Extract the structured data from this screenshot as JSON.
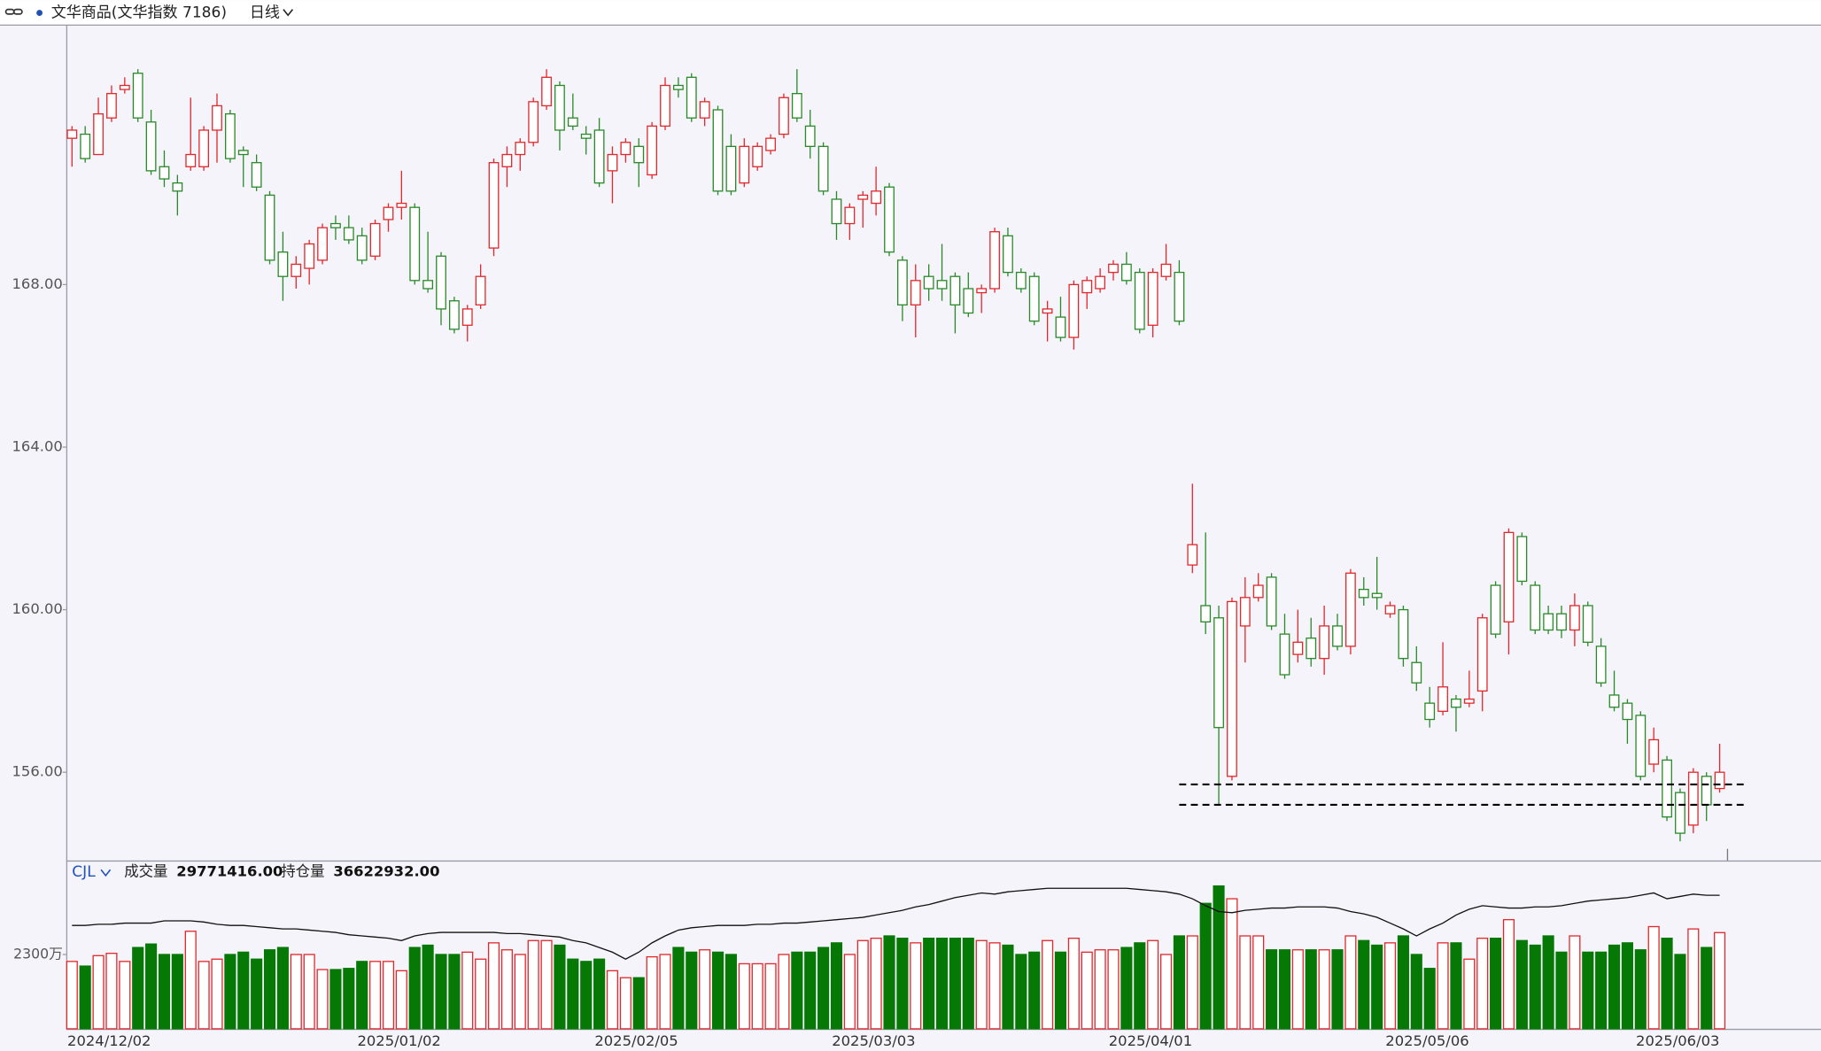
{
  "chart_data": {
    "type": "candlestick",
    "title": "文华商品(文华指数 7186)",
    "period": "日线",
    "categories": [
      "2024/12/02",
      null,
      null,
      null,
      null,
      null,
      null,
      null,
      null,
      null,
      null,
      null,
      null,
      null,
      null,
      null,
      null,
      null,
      null,
      null,
      null,
      null,
      "2025/01/02",
      null,
      null,
      null,
      null,
      null,
      null,
      null,
      null,
      null,
      null,
      null,
      null,
      null,
      null,
      null,
      null,
      null,
      "2025/02/05",
      null,
      null,
      null,
      null,
      null,
      null,
      null,
      null,
      null,
      null,
      null,
      null,
      null,
      null,
      null,
      null,
      null,
      "2025/03/03",
      null,
      null,
      null,
      null,
      null,
      null,
      null,
      null,
      null,
      null,
      null,
      null,
      null,
      null,
      null,
      null,
      null,
      null,
      null,
      null,
      "2025/04/01",
      null,
      null,
      null,
      null,
      null,
      null,
      null,
      null,
      null,
      null,
      null,
      null,
      null,
      null,
      null,
      null,
      null,
      null,
      null,
      null,
      "2025/05/06",
      null,
      null,
      null,
      null,
      null,
      null,
      null,
      null,
      null,
      null,
      null,
      null,
      null,
      null,
      null,
      null,
      null,
      null,
      "2025/06/03",
      null,
      null,
      null,
      null,
      null,
      null
    ],
    "open": [
      171.6,
      171.7,
      171.2,
      172.1,
      172.8,
      173.2,
      172.0,
      170.9,
      170.5,
      170.9,
      170.9,
      171.8,
      172.2,
      171.3,
      171.0,
      170.2,
      168.8,
      168.2,
      168.4,
      168.6,
      169.5,
      169.4,
      169.2,
      168.7,
      169.6,
      169.9,
      169.9,
      168.1,
      168.7,
      167.6,
      167.0,
      167.5,
      168.9,
      170.9,
      171.2,
      171.5,
      172.4,
      172.9,
      172.1,
      171.7,
      171.8,
      170.8,
      171.2,
      171.4,
      170.7,
      171.9,
      172.9,
      173.1,
      172.1,
      172.3,
      171.4,
      170.5,
      170.9,
      171.3,
      171.7,
      172.7,
      171.9,
      171.4,
      170.1,
      169.5,
      170.1,
      170.0,
      170.4,
      168.6,
      167.5,
      168.2,
      168.1,
      168.2,
      167.9,
      167.8,
      167.9,
      169.2,
      168.3,
      168.2,
      167.3,
      167.2,
      166.7,
      167.8,
      167.9,
      168.3,
      168.5,
      168.3,
      167.0,
      168.2,
      168.3,
      161.1,
      160.1,
      159.8,
      155.9,
      159.6,
      160.3,
      160.8,
      159.4,
      158.9,
      159.3,
      158.8,
      159.6,
      159.1,
      160.5,
      160.4,
      159.9,
      160.0,
      158.7,
      157.7,
      157.5,
      157.8,
      157.7,
      158.0,
      160.6,
      159.7,
      161.8,
      160.6,
      159.9,
      159.9,
      159.5,
      160.1,
      159.1,
      157.9,
      157.7,
      157.4,
      156.2,
      156.3,
      155.5,
      154.7,
      155.9,
      155.6
    ],
    "high": [
      171.9,
      171.9,
      172.6,
      172.9,
      173.1,
      173.3,
      172.3,
      171.3,
      170.7,
      172.6,
      171.9,
      172.7,
      172.3,
      171.4,
      171.2,
      170.3,
      169.3,
      168.7,
      169.1,
      169.5,
      169.7,
      169.7,
      169.4,
      169.6,
      170.0,
      170.8,
      170.0,
      169.3,
      168.8,
      167.7,
      167.5,
      168.5,
      171.1,
      171.4,
      171.6,
      172.6,
      173.3,
      173.0,
      172.7,
      171.9,
      172.1,
      171.4,
      171.6,
      171.6,
      172.0,
      173.1,
      173.1,
      173.2,
      172.6,
      172.4,
      171.7,
      171.6,
      171.5,
      171.7,
      172.7,
      173.3,
      172.3,
      171.5,
      170.3,
      170.0,
      170.3,
      170.9,
      170.5,
      168.7,
      168.5,
      168.5,
      169.0,
      168.3,
      168.3,
      168.0,
      169.4,
      169.4,
      168.4,
      168.3,
      167.6,
      167.7,
      168.1,
      168.2,
      168.4,
      168.6,
      168.8,
      168.4,
      168.4,
      169.0,
      168.6,
      163.1,
      161.9,
      160.1,
      160.3,
      160.8,
      160.9,
      160.9,
      159.9,
      160.0,
      159.8,
      160.1,
      159.9,
      161.0,
      160.8,
      161.3,
      160.2,
      160.1,
      159.1,
      158.1,
      159.2,
      157.9,
      158.5,
      159.9,
      160.7,
      162.0,
      161.9,
      160.7,
      160.1,
      160.1,
      160.4,
      160.2,
      159.3,
      158.5,
      157.8,
      157.5,
      157.1,
      156.4,
      155.6,
      156.1,
      156.0,
      156.7
    ],
    "low": [
      170.9,
      171.0,
      171.2,
      172.0,
      172.7,
      172.0,
      170.7,
      170.4,
      169.7,
      170.8,
      170.8,
      171.0,
      171.0,
      170.4,
      170.3,
      168.5,
      167.6,
      167.9,
      168.0,
      168.5,
      169.1,
      169.0,
      168.5,
      168.6,
      169.3,
      169.6,
      168.0,
      167.8,
      167.0,
      166.8,
      166.6,
      167.4,
      168.7,
      170.4,
      170.8,
      171.4,
      172.3,
      171.3,
      171.8,
      171.2,
      170.4,
      170.0,
      171.0,
      170.4,
      170.6,
      171.8,
      172.6,
      172.0,
      171.9,
      170.2,
      170.2,
      170.4,
      170.8,
      171.2,
      171.6,
      172.0,
      171.1,
      170.2,
      169.1,
      169.1,
      169.4,
      169.7,
      168.7,
      167.1,
      166.7,
      167.6,
      167.6,
      166.8,
      167.2,
      167.3,
      167.8,
      168.2,
      167.8,
      167.0,
      166.6,
      166.6,
      166.4,
      167.4,
      167.8,
      168.1,
      168.0,
      166.8,
      166.7,
      168.1,
      167.0,
      160.9,
      159.4,
      155.2,
      155.8,
      158.7,
      160.2,
      159.5,
      158.3,
      158.7,
      158.6,
      158.4,
      159.0,
      158.9,
      160.1,
      160.0,
      159.8,
      158.6,
      158.0,
      157.1,
      157.4,
      157.0,
      157.6,
      157.5,
      159.3,
      158.9,
      160.6,
      159.4,
      159.4,
      159.3,
      159.1,
      159.1,
      158.1,
      157.5,
      156.7,
      155.8,
      156.0,
      154.8,
      154.3,
      154.5,
      154.8,
      155.5
    ],
    "close": [
      171.8,
      171.1,
      172.2,
      172.7,
      172.9,
      172.1,
      170.8,
      170.6,
      170.3,
      171.2,
      171.8,
      172.4,
      171.1,
      171.2,
      170.4,
      168.6,
      168.2,
      168.5,
      169.0,
      169.4,
      169.4,
      169.1,
      168.6,
      169.5,
      169.9,
      170.0,
      168.1,
      167.9,
      167.4,
      166.9,
      167.4,
      168.2,
      171.0,
      171.2,
      171.5,
      172.5,
      173.1,
      171.8,
      171.9,
      171.6,
      170.5,
      171.2,
      171.5,
      171.0,
      171.9,
      172.9,
      172.8,
      172.1,
      172.5,
      170.3,
      170.3,
      171.4,
      171.4,
      171.6,
      172.6,
      172.1,
      171.4,
      170.3,
      169.5,
      169.9,
      170.2,
      170.3,
      168.8,
      167.5,
      168.1,
      167.9,
      167.9,
      167.5,
      167.3,
      167.9,
      169.3,
      168.3,
      167.9,
      167.1,
      167.4,
      166.7,
      168.0,
      168.1,
      168.2,
      168.5,
      168.1,
      166.9,
      168.3,
      168.5,
      167.1,
      161.6,
      159.7,
      157.1,
      160.2,
      160.3,
      160.6,
      159.6,
      158.4,
      159.2,
      158.8,
      159.6,
      159.1,
      160.9,
      160.3,
      160.3,
      160.1,
      158.8,
      158.2,
      157.3,
      158.1,
      157.6,
      157.8,
      159.8,
      159.4,
      161.9,
      160.7,
      159.5,
      159.5,
      159.5,
      160.1,
      159.2,
      158.2,
      157.6,
      157.3,
      155.9,
      156.8,
      154.9,
      154.5,
      156.0,
      155.2,
      156.0
    ],
    "ylim": [
      153.83,
      174.37
    ],
    "yticks": [
      {
        "value": 156,
        "label": "156.00"
      },
      {
        "value": 160,
        "label": "160.00"
      },
      {
        "value": 164,
        "label": "164.00"
      },
      {
        "value": 168,
        "label": "168.00"
      }
    ],
    "up_color": "#e3282d",
    "down_color": "#2a8a2a",
    "hlines": [
      155.7,
      155.2
    ],
    "volume_panel": {
      "label": "CJL",
      "ylim": [
        0,
        5211
      ],
      "yticks": [
        {
          "value": 2300,
          "label": "2300万"
        }
      ],
      "down_fill": "#067806",
      "series": [
        {
          "name": "成交量",
          "latest": {
            "value": 29771416,
            "label": "29771416.00"
          },
          "values": [
            2085,
            1941,
            2264,
            2336,
            2085,
            2516,
            2624,
            2300,
            2300,
            3019,
            2085,
            2156,
            2300,
            2372,
            2156,
            2444,
            2516,
            2300,
            2300,
            1833,
            1833,
            1869,
            2085,
            2085,
            2085,
            1797,
            2516,
            2588,
            2300,
            2300,
            2372,
            2156,
            2660,
            2444,
            2300,
            2731,
            2731,
            2588,
            2156,
            2085,
            2156,
            1797,
            1581,
            1581,
            2228,
            2300,
            2516,
            2372,
            2444,
            2372,
            2300,
            2013,
            2013,
            2013,
            2300,
            2372,
            2372,
            2516,
            2660,
            2300,
            2731,
            2803,
            2875,
            2803,
            2660,
            2803,
            2803,
            2803,
            2803,
            2731,
            2660,
            2588,
            2300,
            2372,
            2731,
            2372,
            2803,
            2372,
            2444,
            2444,
            2516,
            2660,
            2731,
            2300,
            2875,
            2875,
            3882,
            4421,
            4025,
            2875,
            2875,
            2444,
            2444,
            2444,
            2444,
            2444,
            2444,
            2875,
            2731,
            2588,
            2660,
            2875,
            2300,
            1869,
            2660,
            2660,
            2156,
            2803,
            2803,
            3378,
            2731,
            2588,
            2875,
            2372,
            2875,
            2372,
            2372,
            2588,
            2660,
            2444,
            3163,
            2803,
            2300,
            3091,
            2516,
            2977
          ]
        },
        {
          "name": "持仓量",
          "latest": {
            "value": 36622932,
            "label": "36622932.00"
          },
          "color": "#111111",
          "values": [
            3199,
            3199,
            3235,
            3235,
            3271,
            3271,
            3271,
            3342,
            3342,
            3342,
            3306,
            3235,
            3199,
            3199,
            3163,
            3127,
            3091,
            3091,
            3055,
            3019,
            2983,
            2911,
            2875,
            2839,
            2803,
            2731,
            2875,
            2947,
            2983,
            2983,
            2983,
            2983,
            2983,
            2947,
            2947,
            2911,
            2875,
            2839,
            2731,
            2660,
            2516,
            2372,
            2156,
            2372,
            2660,
            2875,
            3055,
            3127,
            3163,
            3199,
            3199,
            3199,
            3235,
            3235,
            3271,
            3271,
            3306,
            3342,
            3378,
            3414,
            3450,
            3522,
            3594,
            3666,
            3774,
            3846,
            3953,
            4061,
            4133,
            4205,
            4169,
            4241,
            4277,
            4313,
            4349,
            4349,
            4349,
            4349,
            4349,
            4349,
            4349,
            4313,
            4277,
            4241,
            4169,
            4025,
            3810,
            3630,
            3594,
            3666,
            3702,
            3738,
            3738,
            3774,
            3774,
            3774,
            3738,
            3630,
            3558,
            3450,
            3271,
            3091,
            2875,
            3091,
            3271,
            3522,
            3702,
            3810,
            3774,
            3738,
            3738,
            3774,
            3774,
            3810,
            3882,
            3953,
            3989,
            4025,
            4061,
            4133,
            4205,
            4025,
            4097,
            4169,
            4133,
            4133
          ]
        }
      ]
    }
  }
}
